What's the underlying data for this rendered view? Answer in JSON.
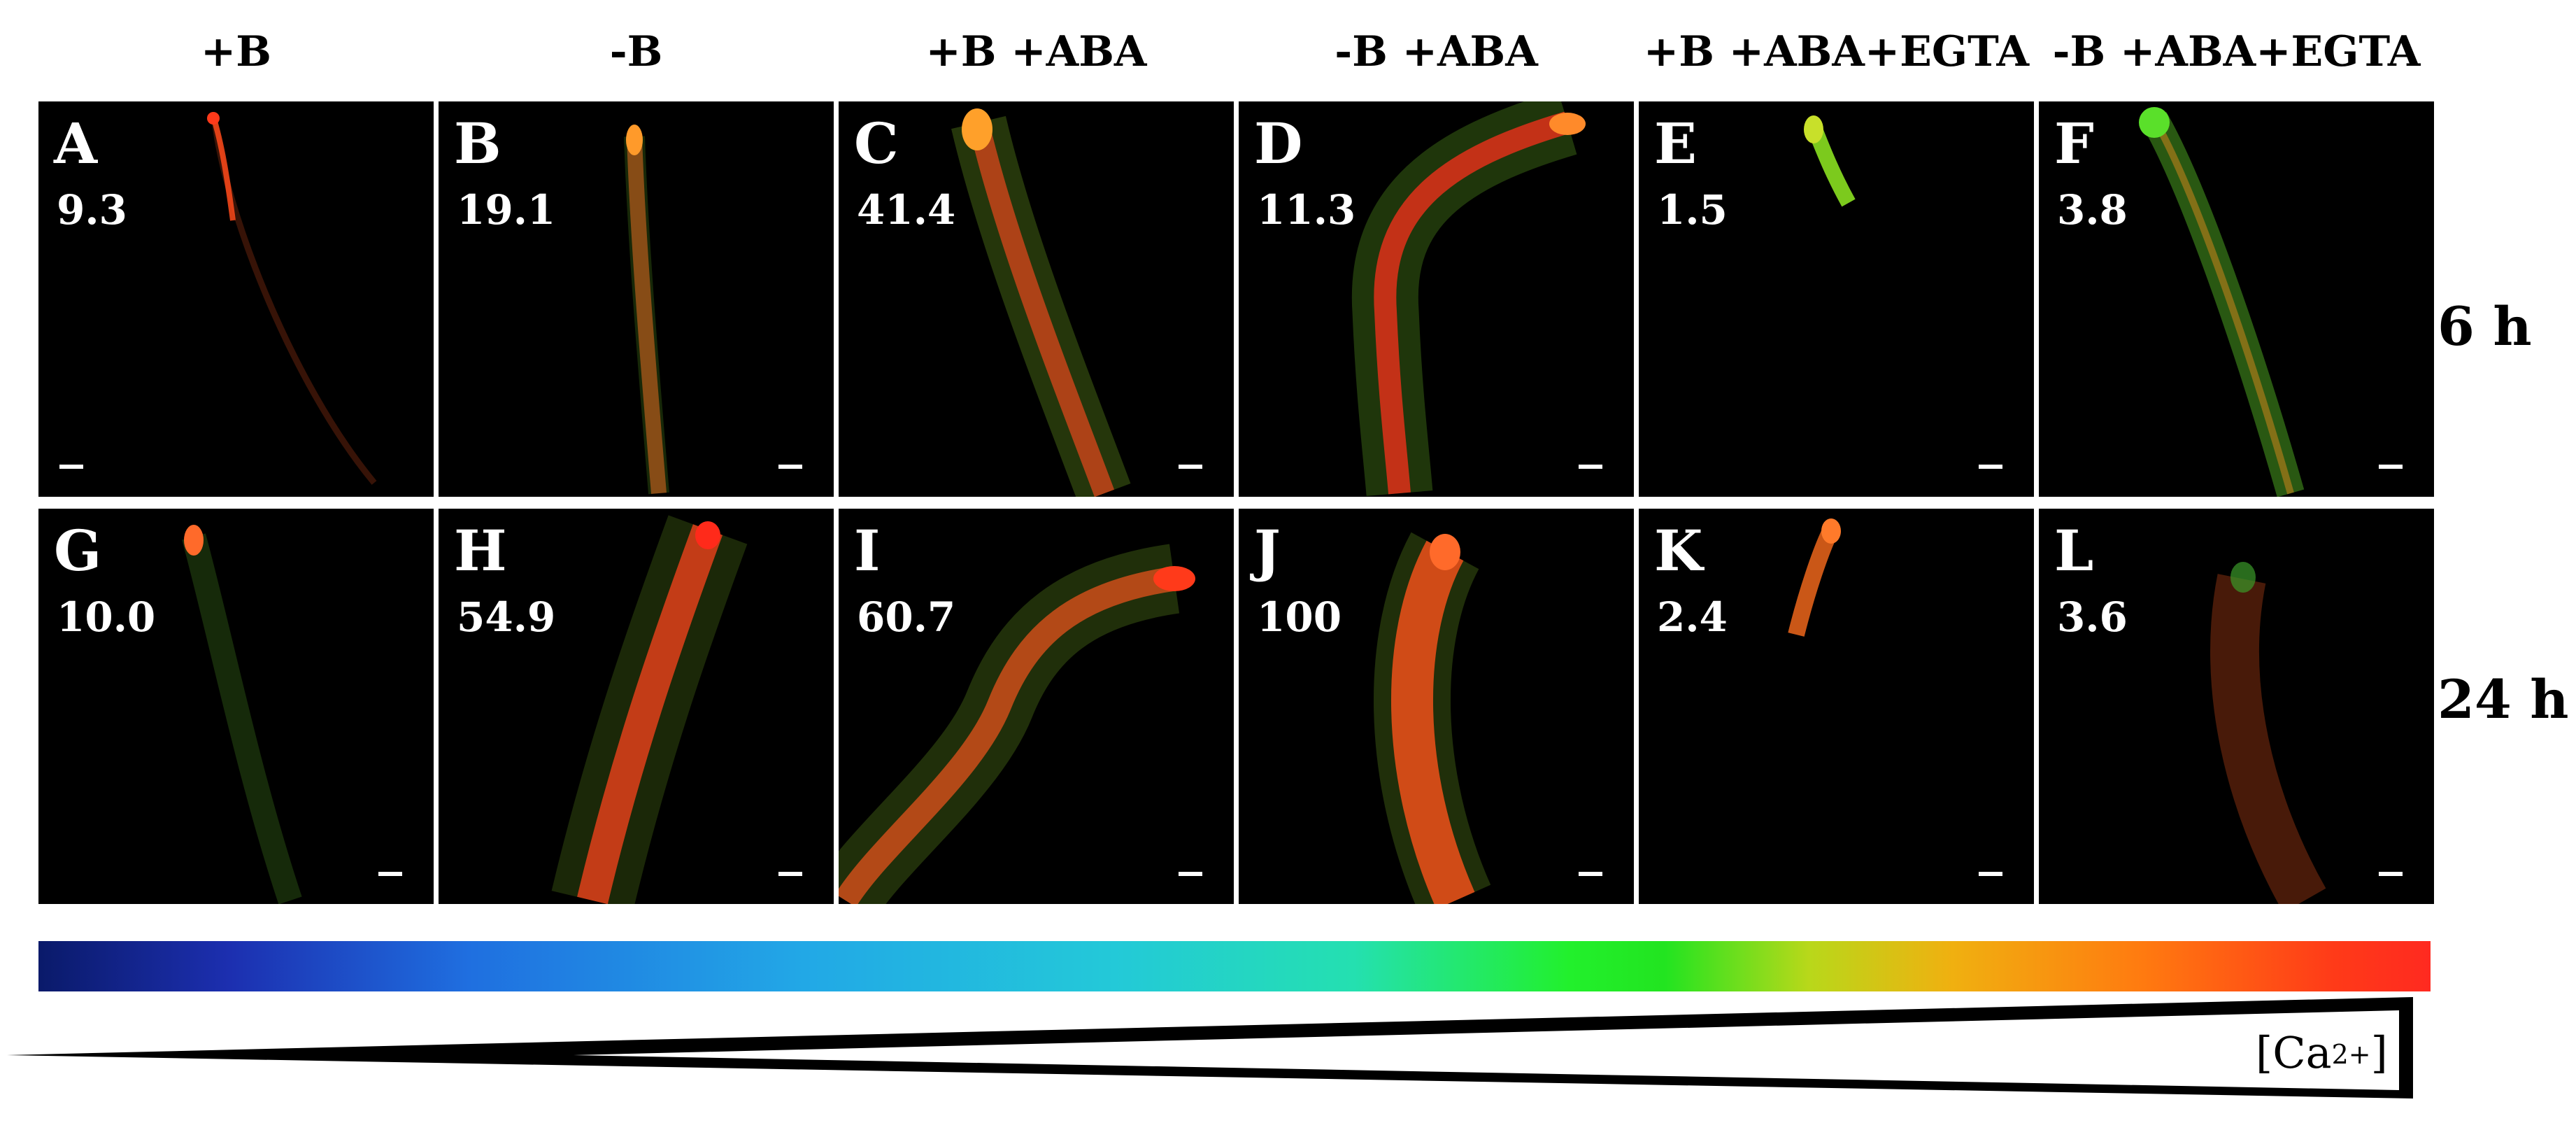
{
  "columns": [
    "+B",
    "-B",
    "+B +ABA",
    "-B +ABA",
    "+B +ABA+EGTA",
    "-B +ABA+EGTA"
  ],
  "rows": [
    "6 h",
    "24 h"
  ],
  "panels": [
    {
      "letter": "A",
      "value": "9.3"
    },
    {
      "letter": "B",
      "value": "19.1"
    },
    {
      "letter": "C",
      "value": "41.4"
    },
    {
      "letter": "D",
      "value": "11.3"
    },
    {
      "letter": "E",
      "value": "1.5"
    },
    {
      "letter": "F",
      "value": "3.8"
    },
    {
      "letter": "G",
      "value": "10.0"
    },
    {
      "letter": "H",
      "value": "54.9"
    },
    {
      "letter": "I",
      "value": "60.7"
    },
    {
      "letter": "J",
      "value": "100"
    },
    {
      "letter": "K",
      "value": "2.4"
    },
    {
      "letter": "L",
      "value": "3.6"
    }
  ],
  "colorbar": {
    "colors": [
      "#0a1a6a",
      "#1f6fe0",
      "#23c9d8",
      "#22f02c",
      "#f0b010",
      "#ff3a18"
    ]
  },
  "ca_label": {
    "prefix": "[Ca",
    "superscript": "2+",
    "suffix": "]"
  }
}
